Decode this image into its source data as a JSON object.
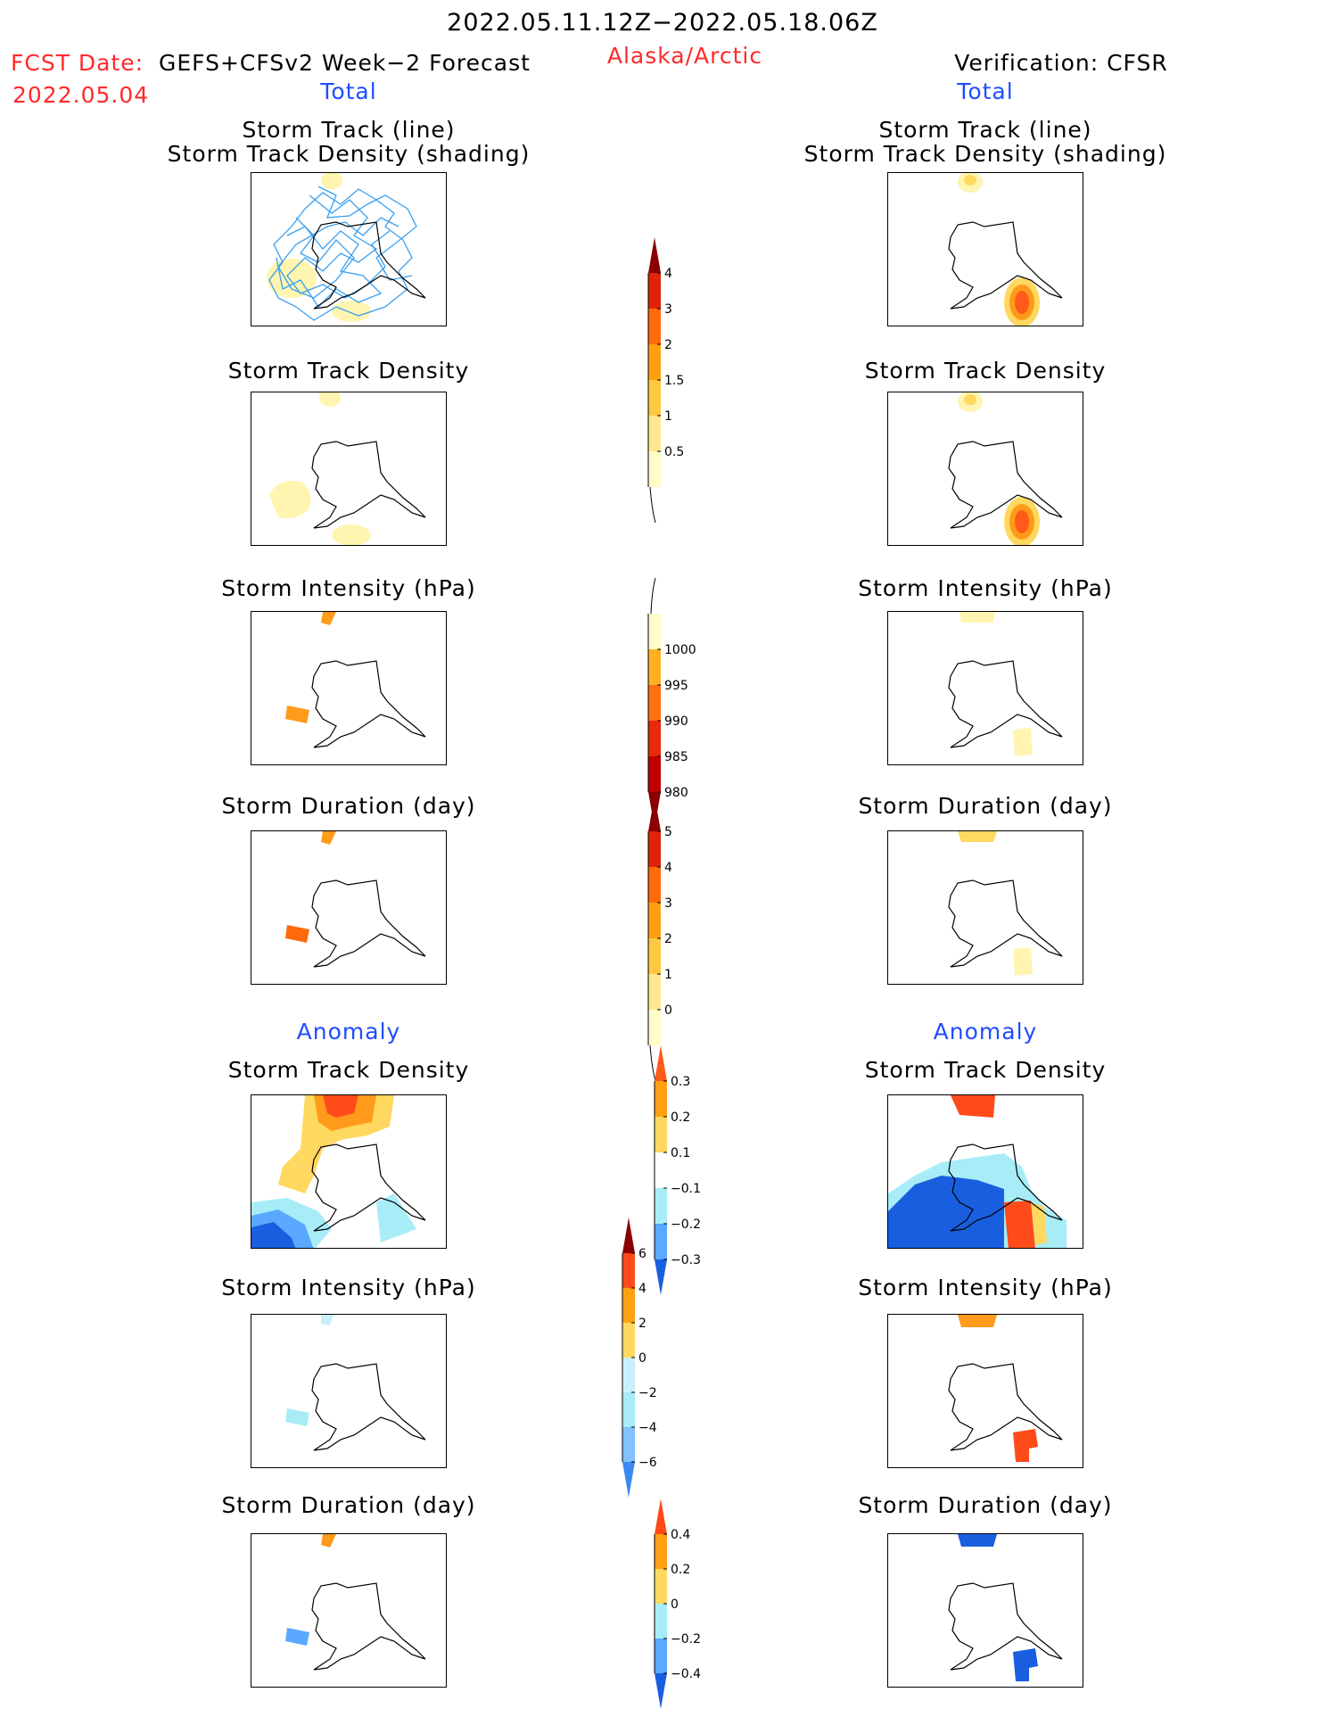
{
  "header": {
    "date_range": "2022.05.11.12Z−2022.05.18.06Z",
    "fcst_date_label": "FCST Date:",
    "fcst_date": "2022.05.04",
    "forecast_name": "GEFS+CFSv2 Week−2 Forecast",
    "region": "Alaska/Arctic",
    "verification": "Verification: CFSR"
  },
  "sections": {
    "total": "Total",
    "anomaly": "Anomaly"
  },
  "panel_titles": {
    "storm_track_line": "Storm Track (line)",
    "storm_track_shading": "Storm Track Density (shading)",
    "storm_track_density": "Storm Track Density",
    "storm_intensity": "Storm Intensity (hPa)",
    "storm_duration": "Storm Duration (day)"
  },
  "colorbars": {
    "density": {
      "labels": [
        "4",
        "3",
        "2",
        "1.5",
        "1",
        "0.5"
      ]
    },
    "intensity": {
      "labels": [
        "1000",
        "995",
        "990",
        "985",
        "980"
      ]
    },
    "duration": {
      "labels": [
        "5",
        "4",
        "3",
        "2",
        "1",
        "0"
      ]
    },
    "density_anom": {
      "labels": [
        "0.3",
        "0.2",
        "0.1",
        "−0.1",
        "−0.2",
        "−0.3"
      ]
    },
    "intensity_anom": {
      "labels": [
        "6",
        "4",
        "2",
        "0",
        "−2",
        "−4",
        "−6"
      ]
    },
    "duration_anom": {
      "labels": [
        "0.4",
        "0.2",
        "0",
        "−0.2",
        "−0.4"
      ]
    }
  },
  "colors": {
    "title_red": "#ff2a2a",
    "title_blue": "#1f4dff",
    "track_line": "#3aa0f0"
  }
}
